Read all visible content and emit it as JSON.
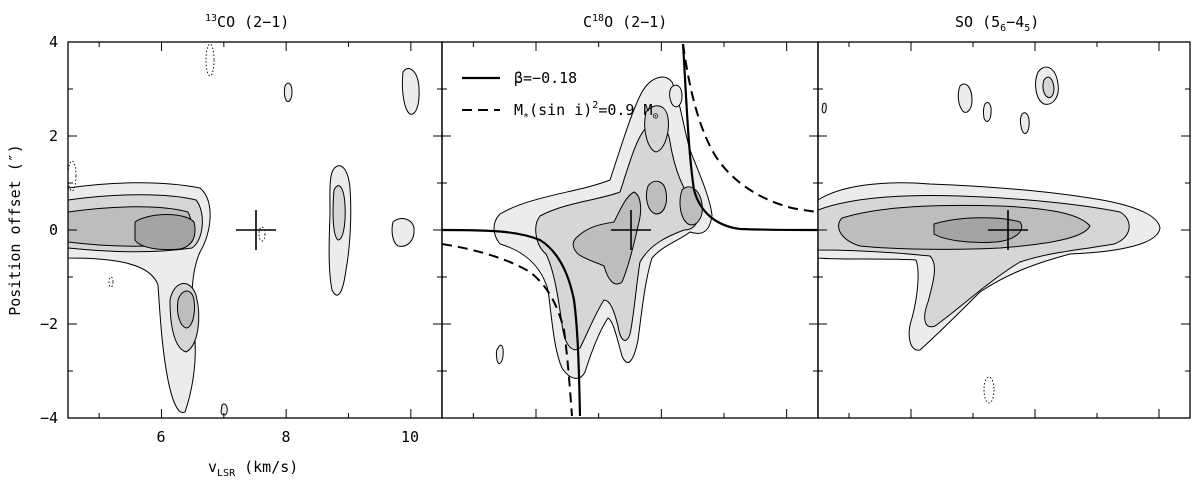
{
  "panels": [
    {
      "title_main": "CO (2−1)",
      "title_sup": "13",
      "title_pre": ""
    },
    {
      "title_pre": "C",
      "title_sup": "18",
      "title_main": "O (2−1)"
    },
    {
      "title_main": "SO (5",
      "sub1": "6",
      "mid": "−4",
      "sub2": "5",
      "end": ")"
    }
  ],
  "axes": {
    "ylabel": "Position offset (″)",
    "xlabel_main": "v",
    "xlabel_sub": "LSR",
    "xlabel_unit": " (km/s)",
    "yticks": [
      "4",
      "2",
      "0",
      "−2",
      "−4"
    ],
    "xticks": [
      "6",
      "8",
      "10"
    ]
  },
  "legend": {
    "solid_label": "β=−0.18",
    "dashed_pre": "M",
    "dashed_sub": "*",
    "dashed_mid": "(sin i)",
    "dashed_sup": "2",
    "dashed_post": "=0.9 M",
    "dashed_sun": "⊙"
  },
  "colors": {
    "level1": "#ececec",
    "level2": "#d6d6d6",
    "level3": "#bdbdbd",
    "level4": "#a4a4a4",
    "line": "#000000"
  },
  "chart_data": {
    "type": "heatmap",
    "subtype": "position-velocity contour diagrams",
    "xlim": [
      4.5,
      10.5
    ],
    "ylim": [
      -4,
      4
    ],
    "x_tick_values": [
      6,
      8,
      10
    ],
    "y_tick_values": [
      4,
      2,
      0,
      -2,
      -4
    ],
    "cross_center": {
      "v": 7.5,
      "offset": 0
    },
    "panels": [
      {
        "name": "13CO (2-1)",
        "emission": "extended at negative velocities and lower-velocity emission; knots near 8.8 km/s"
      },
      {
        "name": "C18O (2-1)",
        "curves": [
          "β=−0.18",
          "M*(sin i)^2=0.9 M⊙"
        ]
      },
      {
        "name": "SO (5_6-4_5)",
        "emission": "elongated emission centered at offset 0"
      }
    ],
    "legend": [
      "β=−0.18",
      "M*(sin i)^2=0.9 M⊙"
    ]
  }
}
